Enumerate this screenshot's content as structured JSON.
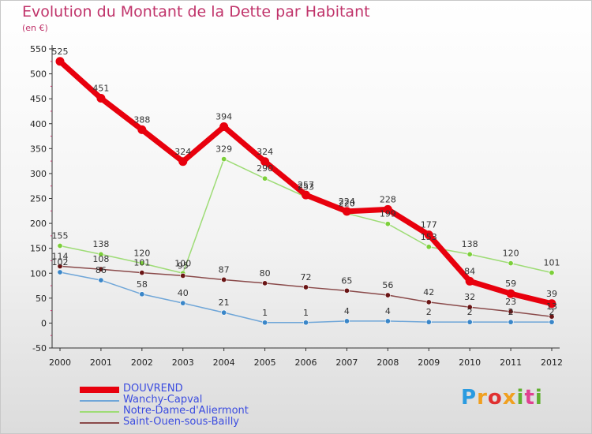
{
  "chart_data": {
    "type": "line",
    "title": "Evolution du Montant de la Dette par Habitant",
    "subtitle": "(en €)",
    "x": [
      "2000",
      "2001",
      "2002",
      "2003",
      "2004",
      "2005",
      "2006",
      "2007",
      "2008",
      "2009",
      "2010",
      "2011",
      "2012"
    ],
    "ylim": [
      -50,
      550
    ],
    "yticks": [
      -50,
      0,
      50,
      100,
      150,
      200,
      250,
      300,
      350,
      400,
      450,
      500,
      550
    ],
    "grid": false,
    "legend_position": "bottom-left",
    "series": [
      {
        "name": "DOUVREND",
        "color": "#e8000d",
        "width": 7,
        "values": [
          525,
          451,
          388,
          324,
          394,
          324,
          257,
          224,
          228,
          177,
          84,
          59,
          39
        ],
        "labels": [
          "525",
          "451",
          "388",
          "324",
          "394",
          "324",
          "257",
          "224",
          "228",
          "177",
          "84",
          "59",
          "39"
        ]
      },
      {
        "name": "Wanchy-Capval",
        "color": "#6fa6d8",
        "marker": "#3a86c8",
        "width": 1.5,
        "values": [
          102,
          86,
          58,
          40,
          21,
          1,
          1,
          4,
          4,
          2,
          2,
          2,
          2
        ],
        "labels": [
          "102",
          "86",
          "58",
          "40",
          "21",
          "1",
          "1",
          "4",
          "4",
          "2",
          "2",
          "2",
          "2"
        ]
      },
      {
        "name": "Notre-Dame-d'Aliermont",
        "color": "#9edc76",
        "marker": "#7ccf3a",
        "width": 1.5,
        "values": [
          155,
          138,
          120,
          100,
          329,
          290,
          253,
          220,
          199,
          153,
          138,
          120,
          101
        ],
        "labels": [
          "155",
          "138",
          "120",
          "100",
          "329",
          "290",
          "253",
          "220",
          "199",
          "153",
          "138",
          "120",
          "101"
        ]
      },
      {
        "name": "Saint-Ouen-sous-Bailly",
        "color": "#8a4a4a",
        "marker": "#6a1515",
        "width": 1.5,
        "values": [
          114,
          108,
          101,
          95,
          87,
          80,
          72,
          65,
          56,
          42,
          32,
          23,
          13
        ],
        "labels": [
          "114",
          "108",
          "101",
          "95",
          "87",
          "80",
          "72",
          "65",
          "56",
          "42",
          "32",
          "23",
          "13"
        ]
      }
    ]
  },
  "logo": {
    "letters": [
      "P",
      "r",
      "o",
      "x",
      "i",
      "t",
      "i"
    ],
    "colors": [
      "#2a9be0",
      "#f0a020",
      "#e03030",
      "#f0a020",
      "#60b030",
      "#e04090",
      "#60b030"
    ]
  }
}
